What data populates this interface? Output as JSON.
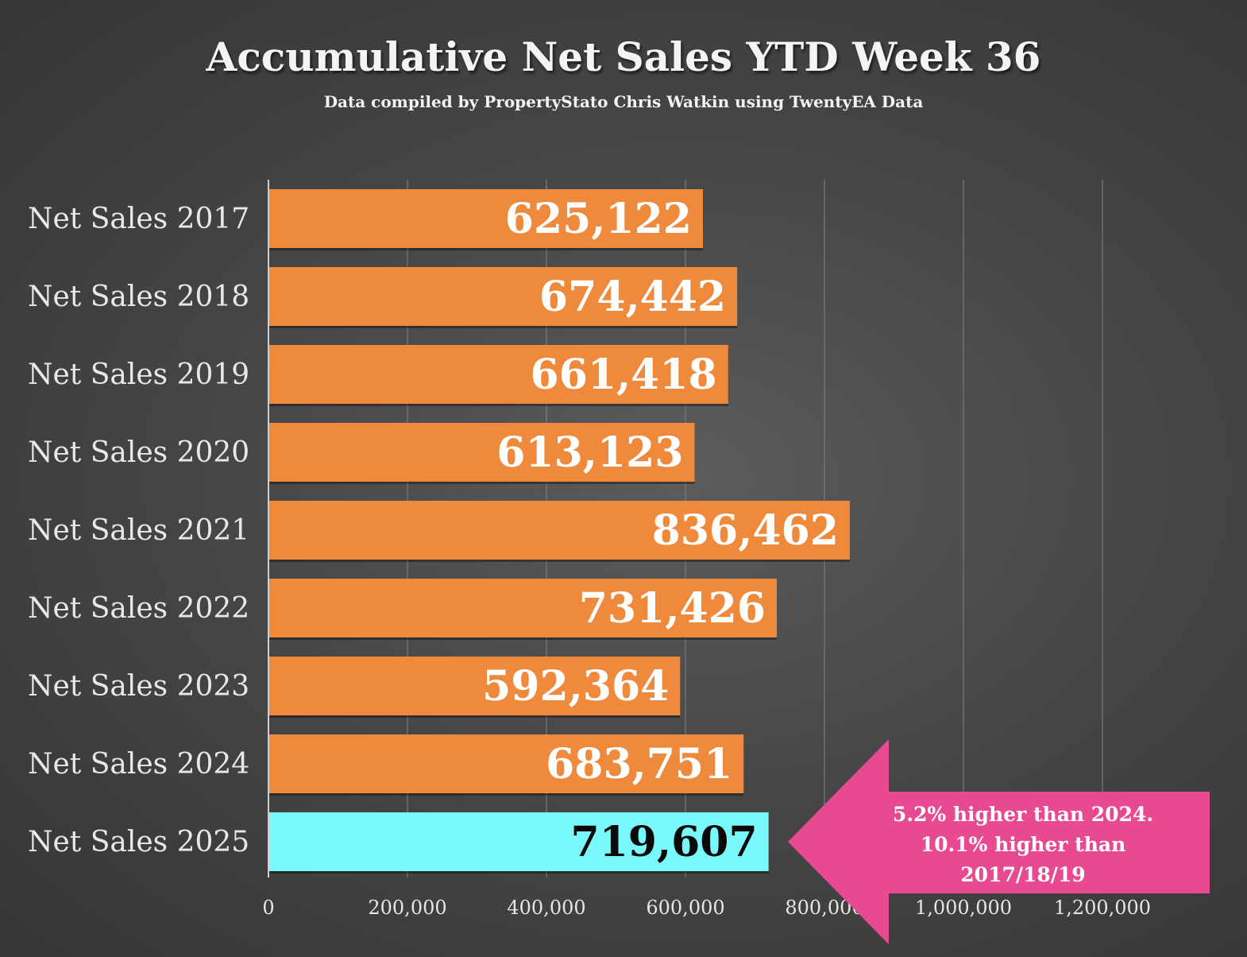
{
  "chart_data": {
    "type": "bar",
    "orientation": "horizontal",
    "title": "Accumulative Net Sales YTD Week 36",
    "subtitle": "Data compiled by PropertyStato Chris Watkin using TwentyEA Data",
    "categories": [
      "Net Sales 2017",
      "Net Sales 2018",
      "Net Sales 2019",
      "Net Sales 2020",
      "Net Sales 2021",
      "Net Sales 2022",
      "Net Sales 2023",
      "Net Sales 2024",
      "Net Sales 2025"
    ],
    "values": [
      625122,
      674442,
      661418,
      613123,
      836462,
      731426,
      592364,
      683751,
      719607
    ],
    "data_labels": [
      "625,122",
      "674,442",
      "661,418",
      "613,123",
      "836,462",
      "731,426",
      "592,364",
      "683,751",
      "719,607"
    ],
    "highlight_index": 8,
    "xlim": [
      0,
      1200000
    ],
    "xticks": [
      0,
      200000,
      400000,
      600000,
      800000,
      1000000,
      1200000
    ],
    "xtick_labels": [
      "0",
      "200,000",
      "400,000",
      "600,000",
      "800,000",
      "1,000,000",
      "1,200,000"
    ],
    "grid": true,
    "colors": {
      "bar": "#ef8a3c",
      "highlight": "#7af9fc",
      "callout": "#e84a92"
    },
    "annotation": {
      "lines": [
        "5.2% higher than 2024.",
        "10.1% higher than",
        "2017/18/19"
      ]
    }
  }
}
